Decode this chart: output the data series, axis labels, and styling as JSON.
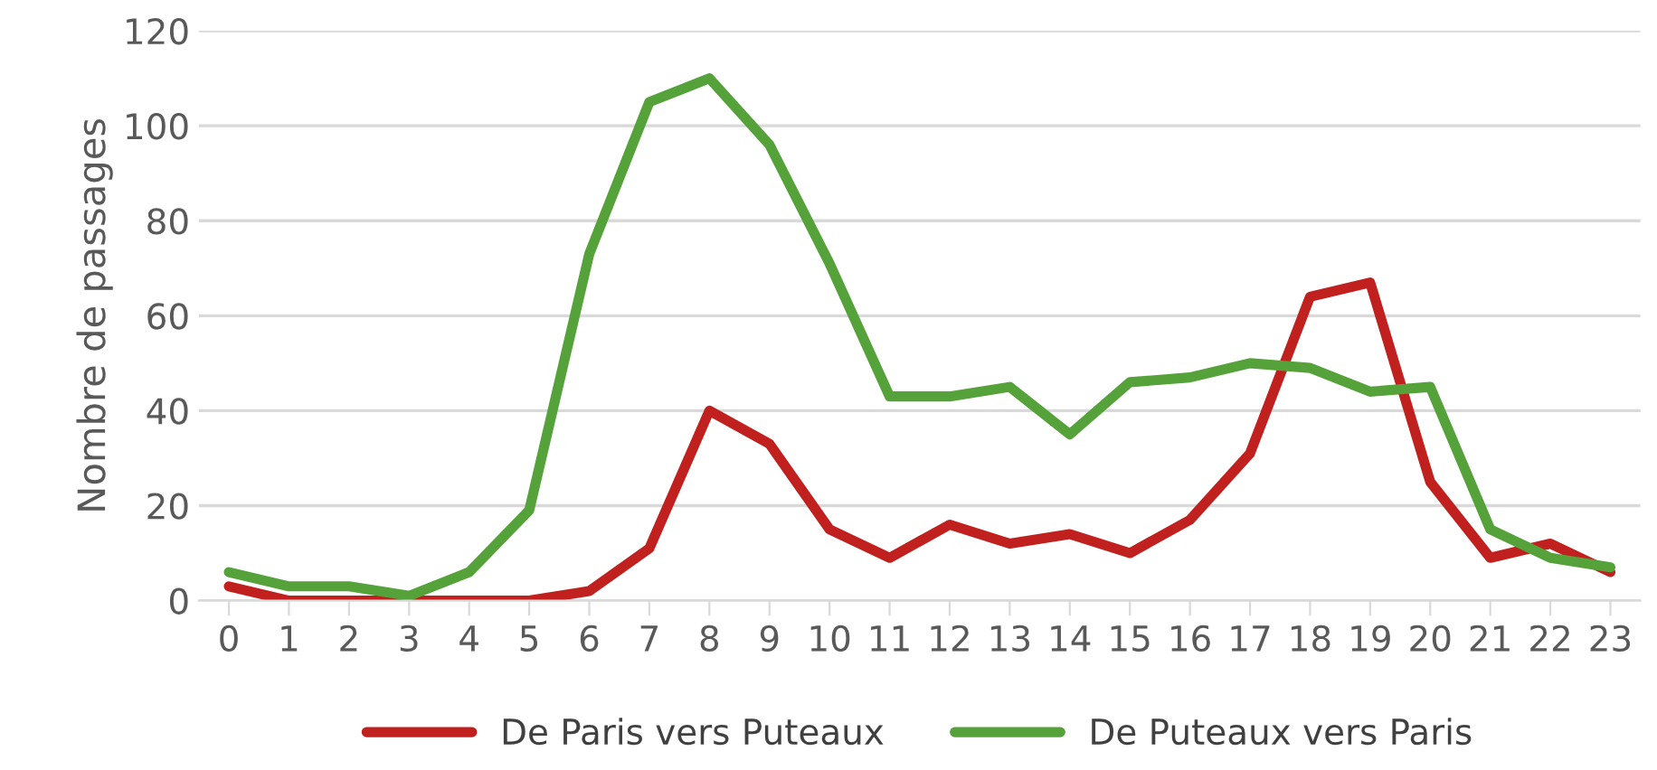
{
  "chart_data": {
    "type": "line",
    "ylabel": "Nombre de passages",
    "categories": [
      "0",
      "1",
      "2",
      "3",
      "4",
      "5",
      "6",
      "7",
      "8",
      "9",
      "10",
      "11",
      "12",
      "13",
      "14",
      "15",
      "16",
      "17",
      "18",
      "19",
      "20",
      "21",
      "22",
      "23"
    ],
    "series": [
      {
        "name": "De Paris vers Puteaux",
        "color": "#c0201e",
        "values": [
          3,
          0,
          0,
          0,
          0,
          0,
          2,
          11,
          40,
          33,
          15,
          9,
          16,
          12,
          14,
          10,
          17,
          31,
          64,
          67,
          25,
          9,
          12,
          6
        ]
      },
      {
        "name": "De Puteaux vers Paris",
        "color": "#55a13a",
        "values": [
          6,
          3,
          3,
          1,
          6,
          19,
          73,
          105,
          110,
          96,
          71,
          43,
          43,
          45,
          35,
          46,
          47,
          50,
          49,
          44,
          45,
          15,
          9,
          7
        ]
      }
    ],
    "ylim": [
      0,
      120
    ],
    "yticks": [
      0,
      20,
      40,
      60,
      80,
      100,
      120
    ],
    "grid": "y",
    "legend": "bottom",
    "marker": "none",
    "line_style": "solid"
  }
}
